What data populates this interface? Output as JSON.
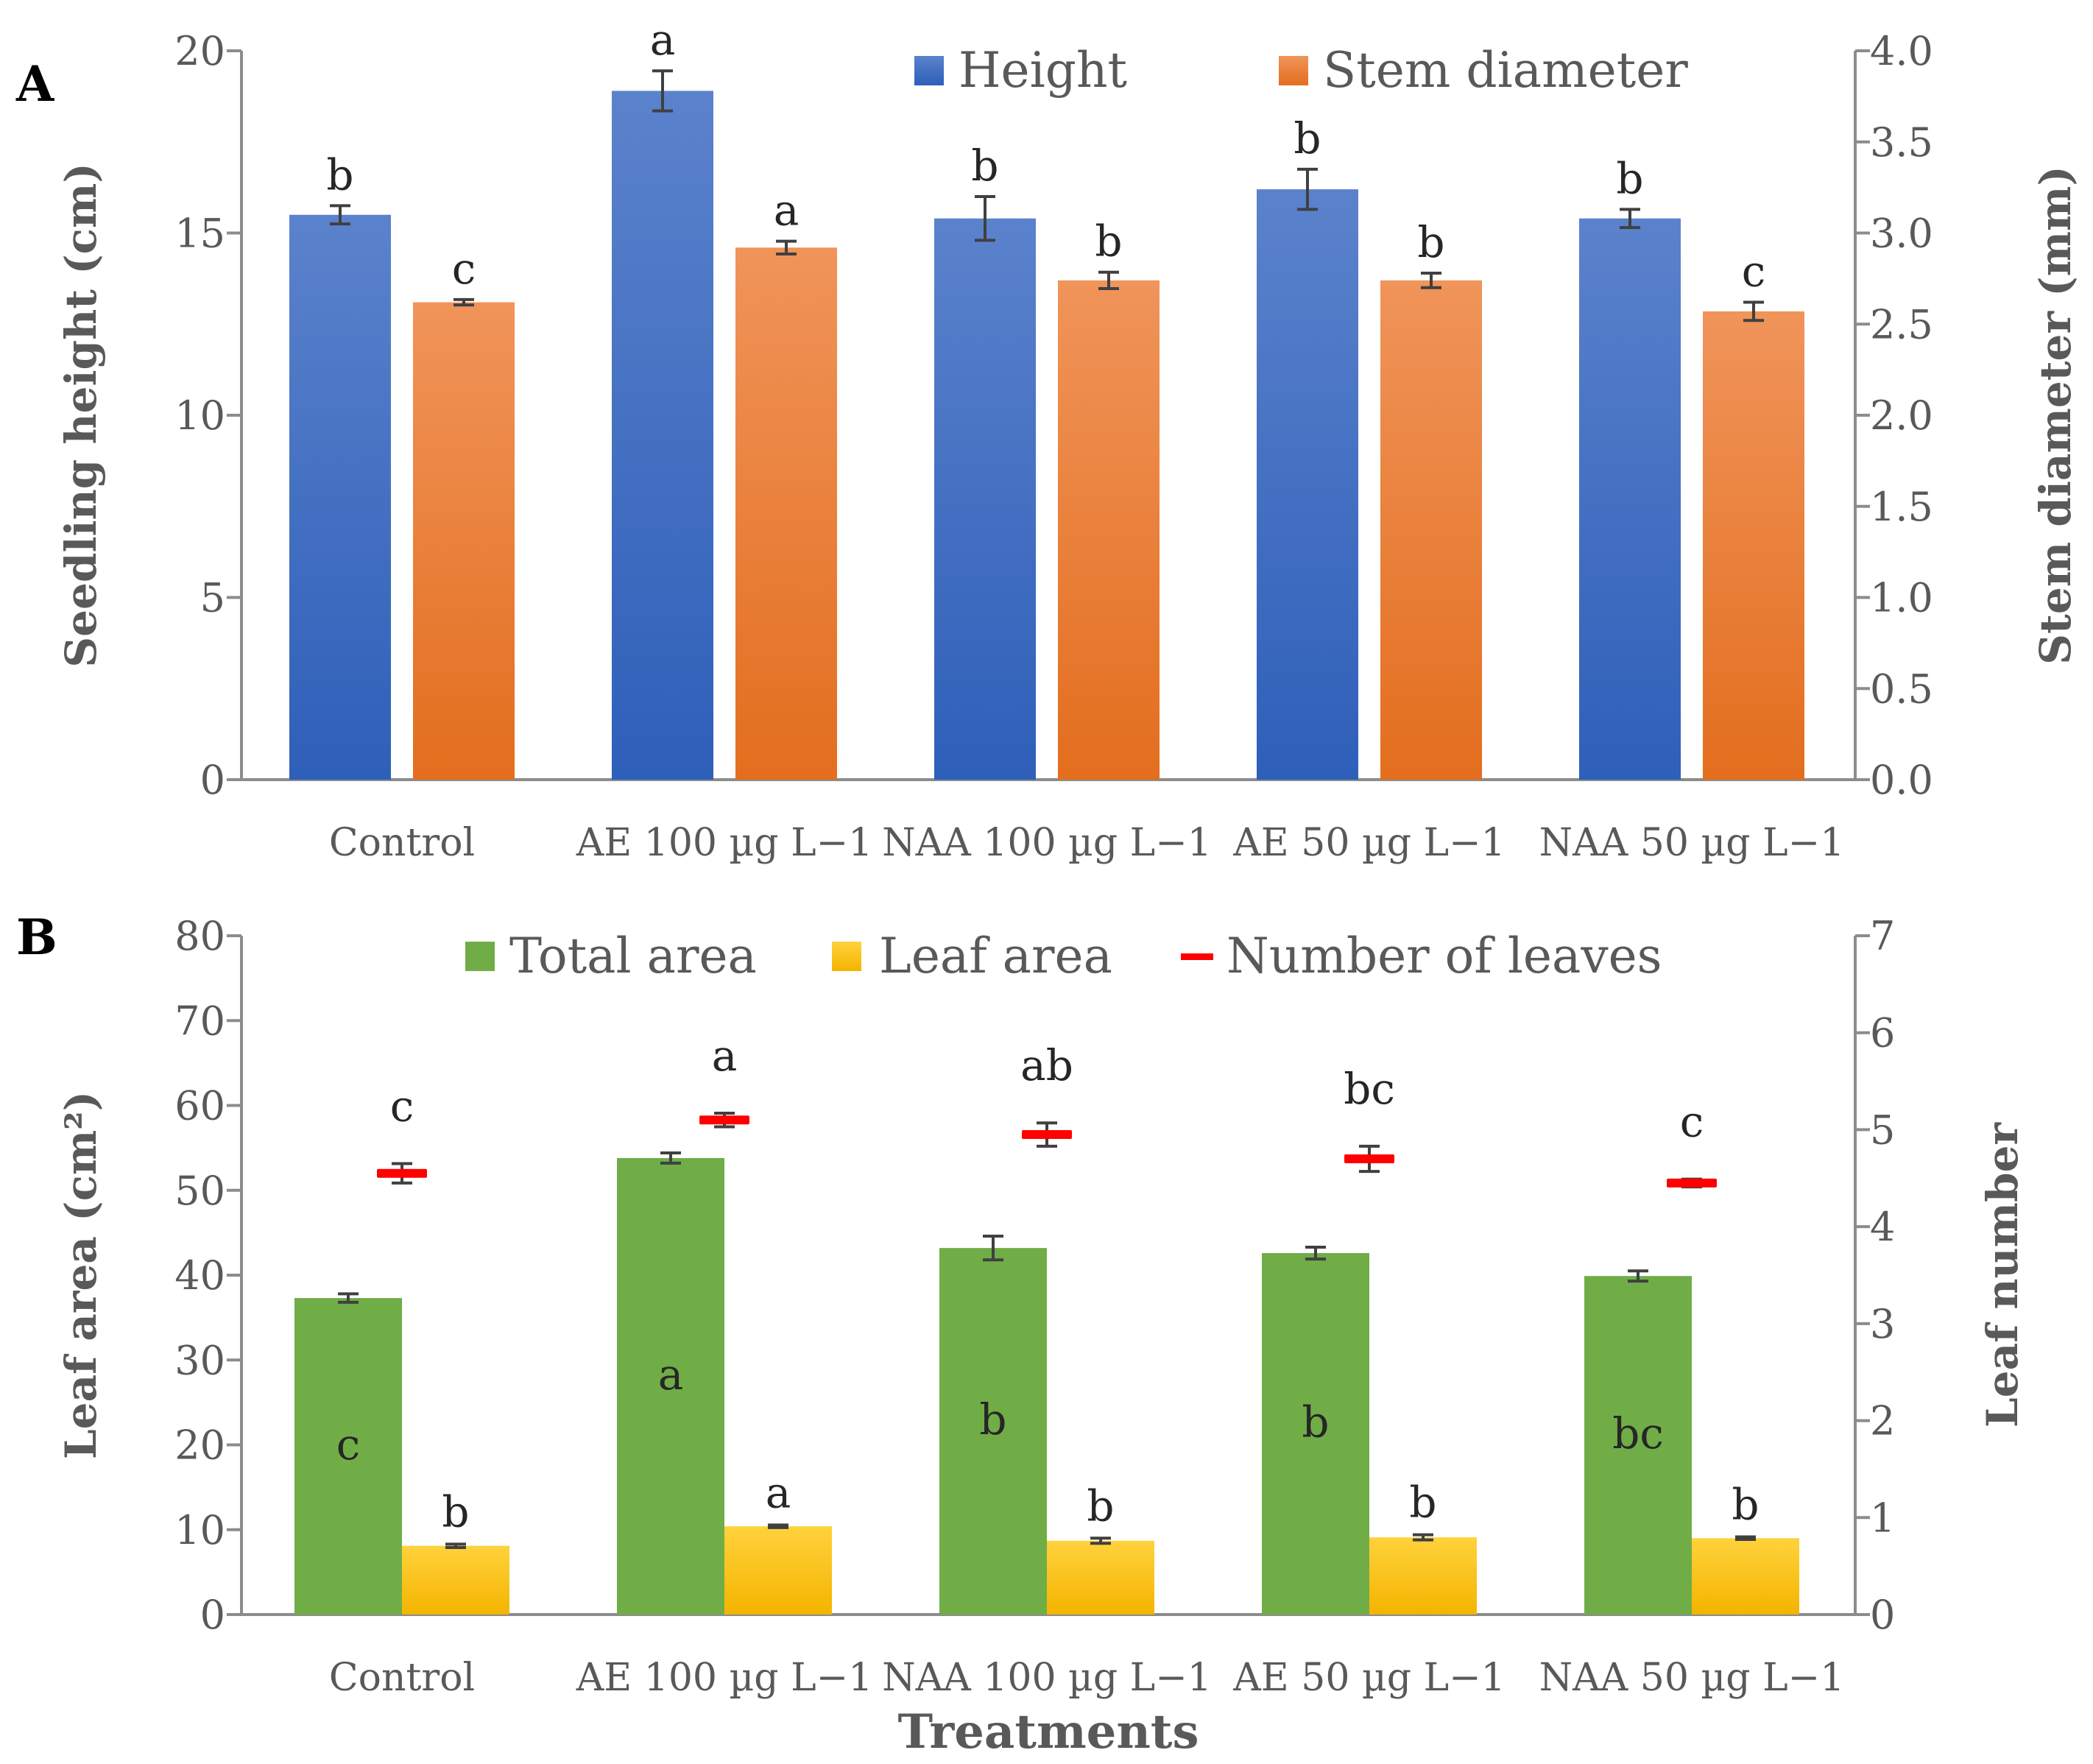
{
  "chart_data": [
    {
      "panel_label": "A",
      "type": "bar",
      "categories": [
        "Control",
        "AE 100 µg L−1",
        "NAA 100 µg L−1",
        "AE 50 µg L−1",
        "NAA 50 µg L−1"
      ],
      "ylabel": "Seedling height (cm)",
      "y2label": "Stem diameter (mm)",
      "ylim": [
        0,
        20
      ],
      "y2lim": [
        0,
        4
      ],
      "yticks": [
        "0",
        "5",
        "10",
        "15",
        "20"
      ],
      "y2ticks": [
        "0.0",
        "0.5",
        "1.0",
        "1.5",
        "2.0",
        "2.5",
        "3.0",
        "3.5",
        "4.0"
      ],
      "series": [
        {
          "name": "Height",
          "axis": "left",
          "color": "#4472c4",
          "values": [
            15.5,
            18.9,
            15.4,
            16.2,
            15.4
          ],
          "errors": [
            0.25,
            0.55,
            0.6,
            0.55,
            0.25
          ],
          "letters": [
            "b",
            "a",
            "b",
            "b",
            "b"
          ]
        },
        {
          "name": "Stem diameter",
          "axis": "right",
          "color": "#ed7d31",
          "values": [
            2.62,
            2.92,
            2.74,
            2.74,
            2.57
          ],
          "errors": [
            0.015,
            0.035,
            0.045,
            0.04,
            0.05
          ],
          "letters": [
            "c",
            "a",
            "b",
            "b",
            "c"
          ]
        }
      ]
    },
    {
      "panel_label": "B",
      "type": "bar",
      "categories": [
        "Control",
        "AE 100 µg L−1",
        "NAA 100 µg L−1",
        "AE 50 µg L−1",
        "NAA 50 µg L−1"
      ],
      "xlabel": "Treatments",
      "ylabel": "Leaf area (cm²)",
      "y2label": "Leaf number",
      "ylim": [
        0,
        80
      ],
      "y2lim": [
        0,
        7
      ],
      "yticks": [
        "0",
        "10",
        "20",
        "30",
        "40",
        "50",
        "60",
        "70",
        "80"
      ],
      "y2ticks": [
        "0",
        "1",
        "2",
        "3",
        "4",
        "5",
        "6",
        "7"
      ],
      "series": [
        {
          "name": "Total area",
          "axis": "left",
          "color": "#70ad47",
          "values": [
            37.3,
            53.8,
            43.2,
            42.6,
            39.9
          ],
          "errors": [
            0.5,
            0.6,
            1.4,
            0.7,
            0.6
          ],
          "letters": [
            "c",
            "a",
            "b",
            "b",
            "bc"
          ]
        },
        {
          "name": "Leaf area",
          "axis": "left",
          "color": "#ffc000",
          "values": [
            8.1,
            10.4,
            8.7,
            9.1,
            9.0
          ],
          "errors": [
            0.2,
            0.15,
            0.3,
            0.3,
            0.15
          ],
          "letters": [
            "b",
            "a",
            "b",
            "b",
            "b"
          ]
        },
        {
          "name": "Number of leaves",
          "axis": "right",
          "type": "marker",
          "color": "#ff0000",
          "values": [
            4.55,
            5.1,
            4.95,
            4.7,
            4.45
          ],
          "errors": [
            0.1,
            0.07,
            0.12,
            0.13,
            0.04
          ],
          "letters": [
            "c",
            "a",
            "ab",
            "bc",
            "c"
          ]
        }
      ]
    }
  ]
}
